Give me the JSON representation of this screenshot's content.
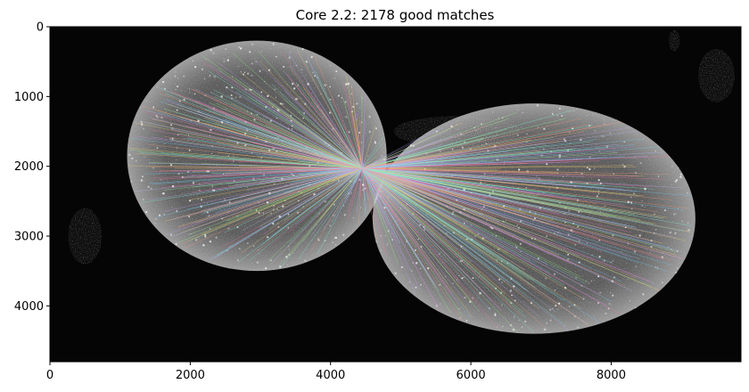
{
  "figure": {
    "title": "Core 2.2: 2178 good matches"
  },
  "image": {
    "description_free": true,
    "background": "#050505",
    "blob_color": "#bdbdbd",
    "match_colors": [
      "#ff6fae",
      "#6fd0ff",
      "#9dff8a",
      "#ffd36b",
      "#c79bff",
      "#7effe0",
      "#ff9b7a",
      "#b8b8ff"
    ]
  },
  "chart_data": {
    "type": "image",
    "title": "Core 2.2: 2178 good matches",
    "xlabel": "",
    "ylabel": "",
    "xlim": [
      0,
      9850
    ],
    "ylim": [
      4800,
      0
    ],
    "x_ticks": [
      0,
      2000,
      4000,
      6000,
      8000
    ],
    "y_ticks": [
      0,
      1000,
      2000,
      3000,
      4000
    ],
    "match_count": 2178,
    "convergence_point": [
      4450,
      2030
    ],
    "left_core": {
      "center": [
        2950,
        1850
      ],
      "rx": 1850,
      "ry": 1650
    },
    "right_core": {
      "center": [
        6900,
        2750
      ],
      "rx": 2300,
      "ry": 1650
    }
  }
}
